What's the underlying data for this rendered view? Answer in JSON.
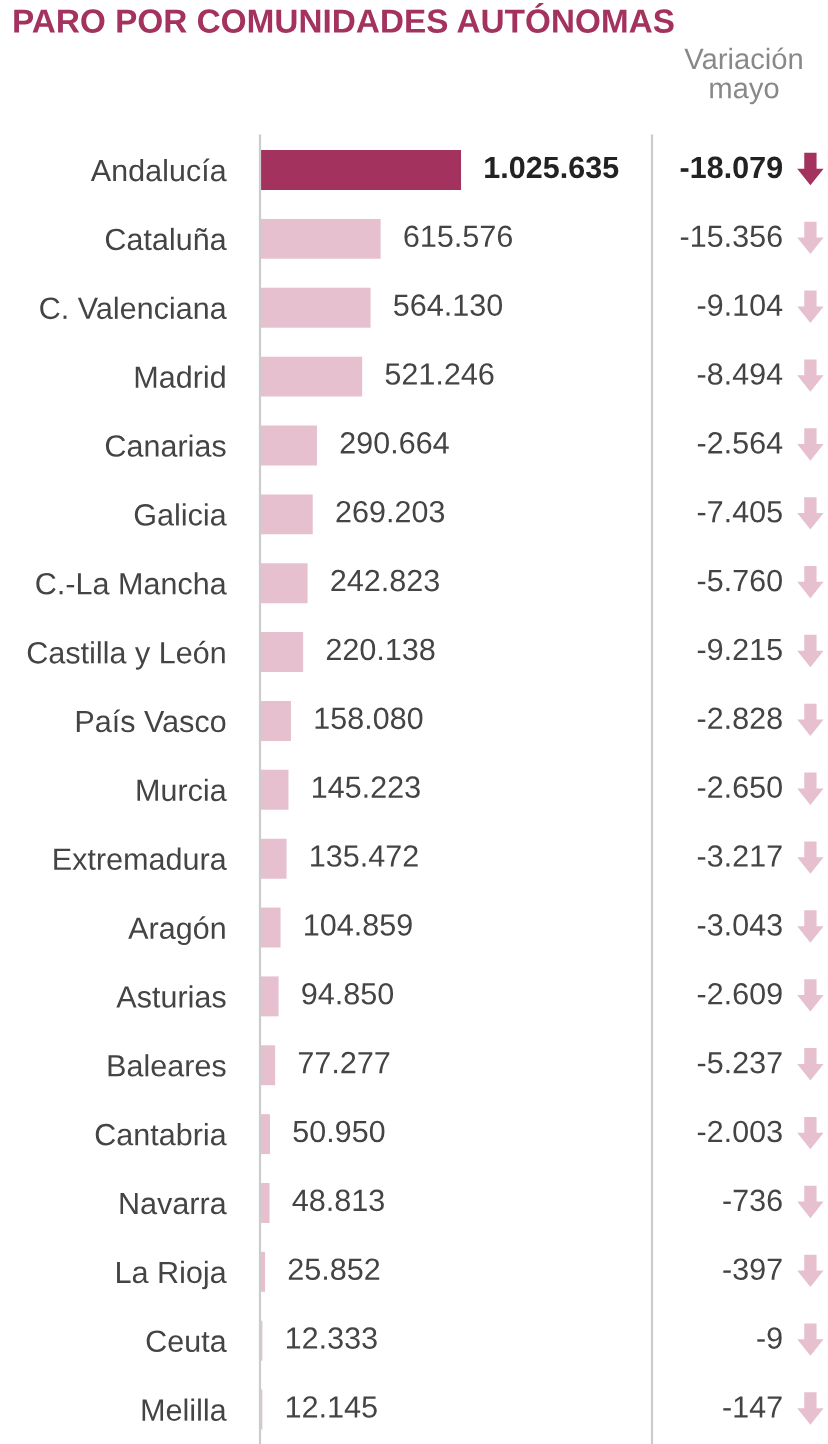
{
  "chart_data": [
    {
      "type": "bar",
      "title": "PARO POR COMUNIDADES AUTÓNOMAS",
      "orientation": "horizontal",
      "categories": [
        "Andalucía",
        "Cataluña",
        "C. Valenciana",
        "Madrid",
        "Canarias",
        "Galicia",
        "C.-La Mancha",
        "Castilla y León",
        "País Vasco",
        "Murcia",
        "Extremadura",
        "Aragón",
        "Asturias",
        "Baleares",
        "Cantabria",
        "Navarra",
        "La Rioja",
        "Ceuta",
        "Melilla"
      ],
      "values": [
        1025635,
        615576,
        564130,
        521246,
        290664,
        269203,
        242823,
        220138,
        158080,
        145223,
        135472,
        104859,
        94850,
        77277,
        50950,
        48813,
        25852,
        12333,
        12145
      ],
      "value_labels": [
        "1.025.635",
        "615.576",
        "564.130",
        "521.246",
        "290.664",
        "269.203",
        "242.823",
        "220.138",
        "158.080",
        "145.223",
        "135.472",
        "104.859",
        "94.850",
        "77.277",
        "50.950",
        "48.813",
        "25.852",
        "12.333",
        "12.145"
      ],
      "colors": [
        "#a3325e",
        "#e6c0cf",
        "#e6c0cf",
        "#e6c0cf",
        "#e6c0cf",
        "#e6c0cf",
        "#e6c0cf",
        "#e6c0cf",
        "#e6c0cf",
        "#e6c0cf",
        "#e6c0cf",
        "#e6c0cf",
        "#e6c0cf",
        "#e6c0cf",
        "#e6c0cf",
        "#e6c0cf",
        "#e6c0cf",
        "#e6c0cf",
        "#e6c0cf"
      ],
      "xlim": [
        0,
        2000000
      ],
      "tick_labels": "y",
      "grid": false,
      "legend": false
    },
    {
      "type": "other",
      "title": "Variación mayo",
      "values": [
        -18079,
        -15356,
        -9104,
        -8494,
        -2564,
        -7405,
        -5760,
        -9215,
        -2828,
        -2650,
        -3217,
        -3043,
        -2609,
        -5237,
        -2003,
        -736,
        -397,
        -9,
        -147
      ],
      "value_labels": [
        "-18.079",
        "-15.356",
        "-9.104",
        "-8.494",
        "-2.564",
        "-7.405",
        "-5.760",
        "-9.215",
        "-2.828",
        "-2.650",
        "-3.217",
        "-3.043",
        "-2.609",
        "-5.237",
        "-2.003",
        "-736",
        "-397",
        "-9",
        "-147"
      ],
      "colors": [
        "#a3325e",
        "#e6c0cf",
        "#e6c0cf",
        "#e6c0cf",
        "#e6c0cf",
        "#e6c0cf",
        "#e6c0cf",
        "#e6c0cf",
        "#e6c0cf",
        "#e6c0cf",
        "#e6c0cf",
        "#e6c0cf",
        "#e6c0cf",
        "#e6c0cf",
        "#e6c0cf",
        "#e6c0cf",
        "#e6c0cf",
        "#e6c0cf",
        "#e6c0cf"
      ]
    }
  ]
}
